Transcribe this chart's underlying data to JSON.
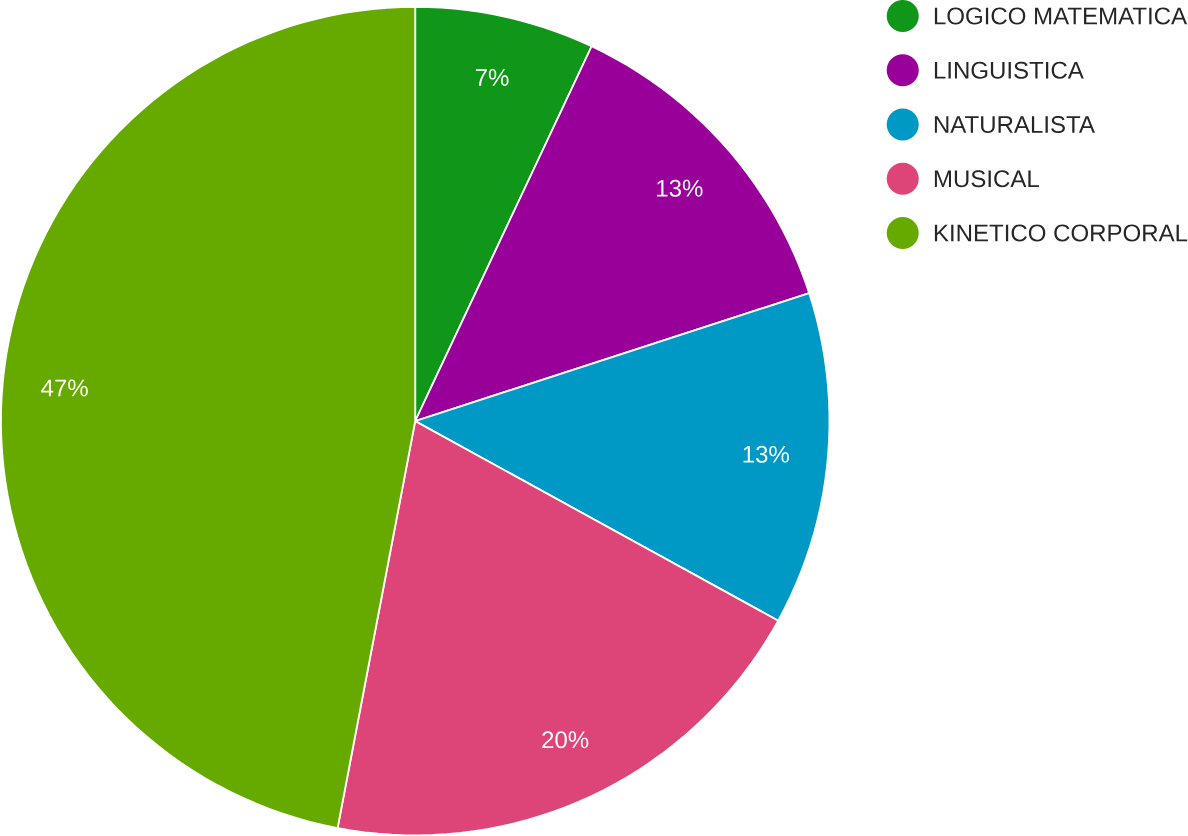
{
  "chart_data": {
    "type": "pie",
    "categories": [
      "LOGICO MATEMATICA",
      "LINGUISTICA",
      "NATURALISTA",
      "MUSICAL",
      "KINETICO CORPORAL"
    ],
    "values": [
      7,
      13,
      13,
      20,
      47
    ],
    "colors": [
      "#109618",
      "#990099",
      "#0099c6",
      "#dd4477",
      "#66aa00"
    ],
    "value_labels": [
      "7%",
      "13%",
      "13%",
      "20%",
      "47%"
    ],
    "legend": "right"
  }
}
